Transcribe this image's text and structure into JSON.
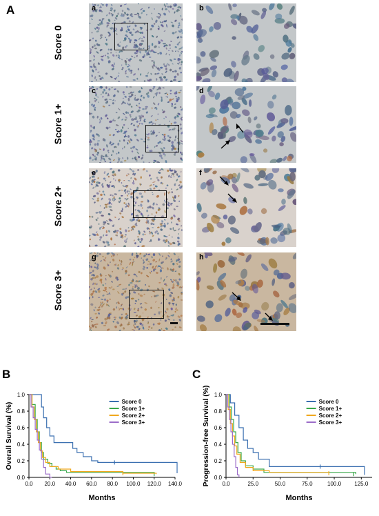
{
  "figure": {
    "panel_a_letter": "A",
    "panel_b_letter": "B",
    "panel_c_letter": "C",
    "rows": [
      {
        "score": "Score 0",
        "left_letter": "a",
        "right_letter": "b"
      },
      {
        "score": "Score 1+",
        "left_letter": "c",
        "right_letter": "d"
      },
      {
        "score": "Score 2+",
        "left_letter": "e",
        "right_letter": "f"
      },
      {
        "score": "Score 3+",
        "left_letter": "g",
        "right_letter": "h"
      }
    ]
  },
  "colors": {
    "score0": "#3a6fb0",
    "score1": "#3aa84a",
    "score2": "#f0a81c",
    "score3": "#9b6cc8",
    "tissue_blue": "#8fa3c0",
    "tissue_brown": "#a0743e"
  },
  "chart_data": [
    {
      "type": "line",
      "subtype": "kaplan-meier",
      "panel": "B",
      "xlabel": "Months",
      "ylabel": "Overall Survival (%)",
      "xlim": [
        0,
        140
      ],
      "ylim": [
        0,
        1.0
      ],
      "xticks": [
        "0.0",
        "20.0",
        "40.0",
        "60.0",
        "80.0",
        "100.0",
        "120.0",
        "140.0"
      ],
      "yticks": [
        "0.0",
        "0.2",
        "0.4",
        "0.6",
        "0.8",
        "1.0"
      ],
      "legend": "top-right",
      "series": [
        {
          "name": "Score 0",
          "color": "#3a6fb0",
          "x": [
            0,
            6,
            12,
            14,
            17,
            20,
            24,
            32,
            42,
            46,
            52,
            60,
            66,
            140,
            142
          ],
          "y": [
            1.0,
            1.0,
            0.85,
            0.72,
            0.6,
            0.5,
            0.42,
            0.42,
            0.35,
            0.3,
            0.25,
            0.2,
            0.18,
            0.18,
            0.05
          ],
          "censor_x": [
            82
          ],
          "censor_y": [
            0.18
          ]
        },
        {
          "name": "Score 1+",
          "color": "#3aa84a",
          "x": [
            0,
            3,
            6,
            8,
            10,
            12,
            14,
            18,
            22,
            26,
            30,
            36,
            120
          ],
          "y": [
            1.0,
            0.88,
            0.7,
            0.55,
            0.42,
            0.3,
            0.22,
            0.17,
            0.13,
            0.1,
            0.08,
            0.06,
            0.04
          ],
          "censor_x": [
            120
          ],
          "censor_y": [
            0.04
          ]
        },
        {
          "name": "Score 2+",
          "color": "#f0a81c",
          "x": [
            0,
            3,
            5,
            7,
            9,
            11,
            13,
            16,
            20,
            28,
            40,
            90,
            122
          ],
          "y": [
            1.0,
            0.85,
            0.7,
            0.55,
            0.42,
            0.32,
            0.24,
            0.18,
            0.13,
            0.1,
            0.07,
            0.05,
            0.04
          ],
          "censor_x": [
            90
          ],
          "censor_y": [
            0.05
          ]
        },
        {
          "name": "Score 3+",
          "color": "#9b6cc8",
          "x": [
            0,
            2,
            4,
            6,
            8,
            10,
            12,
            14,
            16,
            20,
            22
          ],
          "y": [
            1.0,
            0.85,
            0.72,
            0.58,
            0.45,
            0.33,
            0.22,
            0.12,
            0.04,
            0.0,
            0.0
          ],
          "censor_x": [],
          "censor_y": []
        }
      ]
    },
    {
      "type": "line",
      "subtype": "kaplan-meier",
      "panel": "C",
      "xlabel": "Months",
      "ylabel": "Progression-free Survival (%)",
      "xlim": [
        0,
        135
      ],
      "ylim": [
        0,
        1.0
      ],
      "xticks": [
        "0.0",
        "25.0",
        "50.0",
        "75.0",
        "100.0",
        "125.0"
      ],
      "yticks": [
        "0.0",
        "0.2",
        "0.4",
        "0.6",
        "0.8",
        "1.0"
      ],
      "legend": "top-right",
      "series": [
        {
          "name": "Score 0",
          "color": "#3a6fb0",
          "x": [
            0,
            4,
            8,
            12,
            16,
            20,
            25,
            30,
            40,
            120,
            128
          ],
          "y": [
            1.0,
            0.9,
            0.75,
            0.6,
            0.45,
            0.35,
            0.3,
            0.22,
            0.13,
            0.13,
            0.03
          ],
          "censor_x": [
            87
          ],
          "censor_y": [
            0.13
          ]
        },
        {
          "name": "Score 1+",
          "color": "#3aa84a",
          "x": [
            0,
            3,
            5,
            7,
            9,
            11,
            14,
            18,
            25,
            35,
            120
          ],
          "y": [
            1.0,
            0.85,
            0.7,
            0.55,
            0.42,
            0.3,
            0.2,
            0.14,
            0.1,
            0.06,
            0.04
          ],
          "censor_x": [
            118
          ],
          "censor_y": [
            0.04
          ]
        },
        {
          "name": "Score 2+",
          "color": "#f0a81c",
          "x": [
            0,
            2,
            4,
            6,
            8,
            10,
            13,
            18,
            25,
            40,
            95
          ],
          "y": [
            1.0,
            0.82,
            0.65,
            0.5,
            0.38,
            0.28,
            0.18,
            0.12,
            0.08,
            0.06,
            0.05
          ],
          "censor_x": [
            95
          ],
          "censor_y": [
            0.05
          ]
        },
        {
          "name": "Score 3+",
          "color": "#9b6cc8",
          "x": [
            0,
            1.5,
            3,
            4.5,
            6,
            7.5,
            9,
            10.5,
            12
          ],
          "y": [
            1.0,
            0.85,
            0.7,
            0.55,
            0.4,
            0.25,
            0.12,
            0.03,
            0.0
          ],
          "censor_x": [],
          "censor_y": []
        }
      ]
    }
  ]
}
